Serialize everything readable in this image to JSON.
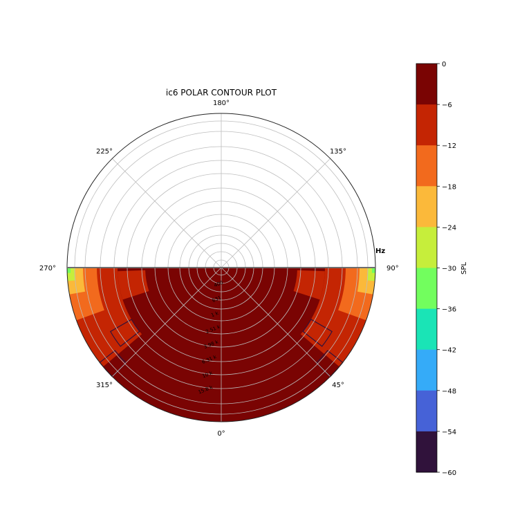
{
  "chart_data": {
    "type": "polar-contour",
    "title": "ic6 POLAR CONTOUR PLOT",
    "radial_unit": "Hz",
    "radial_ticks": [
      "1 k",
      "2.51 k",
      "3.98 k",
      "6.31 k",
      "10 k",
      "15.8 k"
    ],
    "radial_ticks_inner": [
      "400",
      "631"
    ],
    "angle_ticks": [
      {
        "label": "0°",
        "deg": 0
      },
      {
        "label": "45°",
        "deg": 45
      },
      {
        "label": "90°",
        "deg": 90
      },
      {
        "label": "135°",
        "deg": 135
      },
      {
        "label": "180°",
        "deg": 180
      },
      {
        "label": "225°",
        "deg": 225
      },
      {
        "label": "270°",
        "deg": 270
      },
      {
        "label": "315°",
        "deg": 315
      }
    ],
    "angle_range": [
      -90,
      90
    ],
    "grid": true,
    "colorbar": {
      "label": "SPL",
      "ticks": [
        "0",
        "−6",
        "−12",
        "−18",
        "−24",
        "−30",
        "−36",
        "−42",
        "−48",
        "−54",
        "−60"
      ],
      "levels": [
        {
          "from": -6,
          "to": 0,
          "color": "#7a0403"
        },
        {
          "from": -12,
          "to": -6,
          "color": "#c42503"
        },
        {
          "from": -18,
          "to": -12,
          "color": "#f26a1d"
        },
        {
          "from": -24,
          "to": -18,
          "color": "#fbb93a"
        },
        {
          "from": -30,
          "to": -24,
          "color": "#c6ee3b"
        },
        {
          "from": -36,
          "to": -30,
          "color": "#72fe5e"
        },
        {
          "from": -42,
          "to": -36,
          "color": "#1ae4b6"
        },
        {
          "from": -48,
          "to": -42,
          "color": "#35abf8"
        },
        {
          "from": -54,
          "to": -48,
          "color": "#4662d7"
        },
        {
          "from": -60,
          "to": -54,
          "color": "#30123b"
        }
      ]
    },
    "spl_bands_by_angle": [
      {
        "angle_from": 0,
        "angle_to": 50,
        "spl": "0 to −6"
      },
      {
        "angle_from": 50,
        "angle_to": 70,
        "spl": "−6 to −12"
      },
      {
        "angle_from": 70,
        "angle_to": 80,
        "spl": "−12 to −18"
      },
      {
        "angle_from": 80,
        "angle_to": 85,
        "spl": "−18 to −24"
      },
      {
        "angle_from": 85,
        "angle_to": 88,
        "spl": "−24 to −30"
      },
      {
        "angle_from": 88,
        "angle_to": 90,
        "spl": "−30 to −36"
      }
    ]
  }
}
